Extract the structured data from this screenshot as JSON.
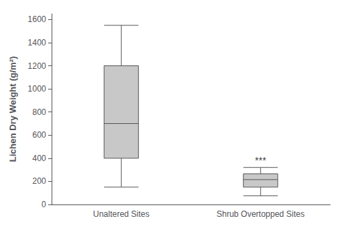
{
  "chart_data": {
    "type": "box",
    "ylabel": "Lichen Dry Weight (g/m²)",
    "categories": [
      "Unaltered Sites",
      "Shrub Overtopped Sites"
    ],
    "values": [
      {
        "whisker_low": 150,
        "q1": 400,
        "median": 700,
        "q3": 1200,
        "whisker_high": 1550
      },
      {
        "whisker_low": 75,
        "q1": 150,
        "median": 215,
        "q3": 265,
        "whisker_high": 320
      }
    ],
    "color": "#c8c8c8",
    "edge_color": "#555555",
    "annotations": [
      {
        "text": "***",
        "x": "Shrub Overtopped Sites",
        "y": 340
      }
    ],
    "ylim": [
      0,
      1650
    ],
    "yticks": [
      0,
      200,
      400,
      600,
      800,
      1000,
      1200,
      1400,
      1600
    ],
    "grid": false
  }
}
